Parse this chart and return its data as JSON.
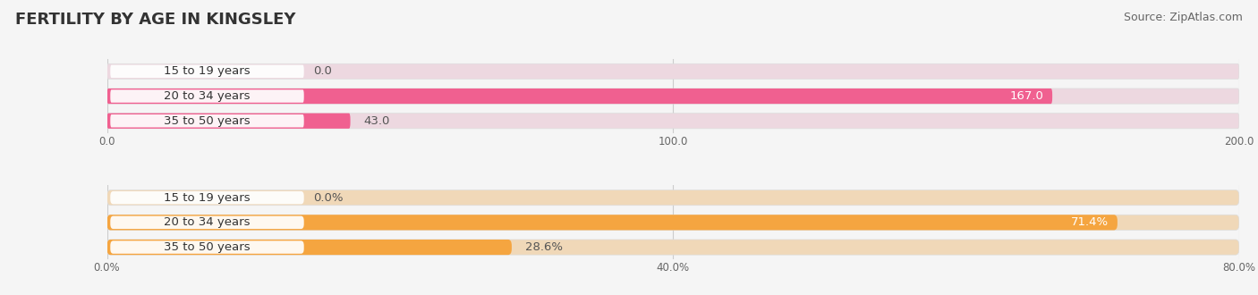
{
  "title": "FERTILITY BY AGE IN KINGSLEY",
  "source": "Source: ZipAtlas.com",
  "top_chart": {
    "categories": [
      "15 to 19 years",
      "20 to 34 years",
      "35 to 50 years"
    ],
    "values": [
      0.0,
      167.0,
      43.0
    ],
    "xlim": [
      0,
      200
    ],
    "xticks": [
      0.0,
      100.0,
      200.0
    ],
    "xtick_labels": [
      "0.0",
      "100.0",
      "200.0"
    ],
    "bar_color": "#f06090",
    "bar_bg_color": "#edd8e0",
    "label_bg_color": "#ffffff",
    "label_threshold": 150
  },
  "bottom_chart": {
    "categories": [
      "15 to 19 years",
      "20 to 34 years",
      "35 to 50 years"
    ],
    "values": [
      0.0,
      71.4,
      28.6
    ],
    "xlim": [
      0,
      80
    ],
    "xticks": [
      0.0,
      40.0,
      80.0
    ],
    "xtick_labels": [
      "0.0%",
      "40.0%",
      "80.0%"
    ],
    "bar_color": "#f5a540",
    "bar_bg_color": "#f0d8b8",
    "label_bg_color": "#ffffff",
    "label_threshold": 60
  },
  "category_label_fontsize": 9.5,
  "value_label_fontsize": 9.5,
  "bar_height": 0.62,
  "background_color": "#f5f5f5",
  "title_fontsize": 13,
  "source_fontsize": 9
}
